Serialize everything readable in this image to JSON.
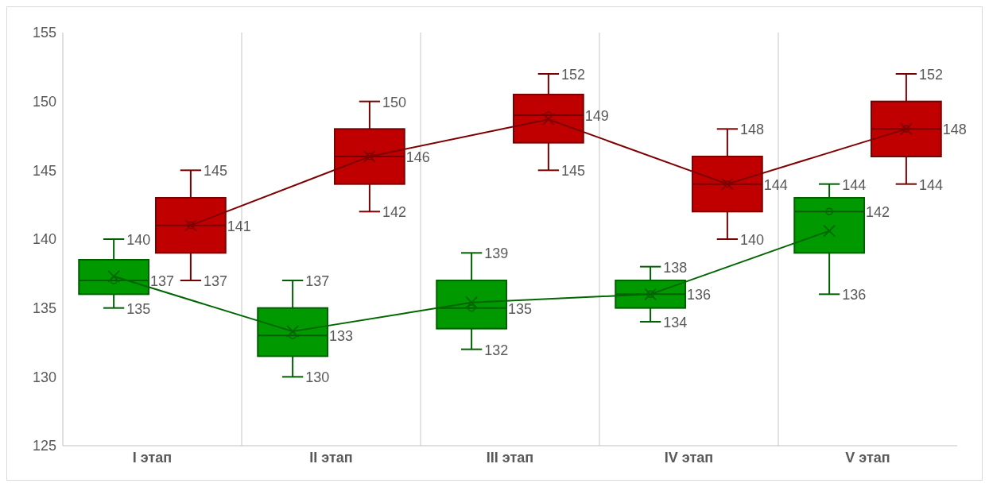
{
  "chart_data": {
    "type": "box",
    "categories": [
      "I этап",
      "II этап",
      "III этап",
      "IV этап",
      "V этап"
    ],
    "ylim": [
      125,
      155
    ],
    "yticks": [
      125,
      130,
      135,
      140,
      145,
      150,
      155
    ],
    "grid": "x",
    "series": [
      {
        "color": "#009900",
        "boxes": [
          {
            "low": 135,
            "q1": 136,
            "median": 137,
            "q3": 138.5,
            "high": 140
          },
          {
            "low": 130,
            "q1": 131.5,
            "median": 133,
            "q3": 135,
            "high": 137
          },
          {
            "low": 132,
            "q1": 133.5,
            "median": 135,
            "q3": 137,
            "high": 139
          },
          {
            "low": 134,
            "q1": 135,
            "median": 136,
            "q3": 137,
            "high": 138
          },
          {
            "low": 136,
            "q1": 139,
            "median": 142,
            "q3": 143,
            "high": 144
          }
        ]
      },
      {
        "color": "#c00000",
        "boxes": [
          {
            "low": 137,
            "q1": 139,
            "median": 141,
            "q3": 143,
            "high": 145
          },
          {
            "low": 142,
            "q1": 144,
            "median": 146,
            "q3": 148,
            "high": 150
          },
          {
            "low": 145,
            "q1": 147,
            "median": 149,
            "q3": 150.5,
            "high": 152
          },
          {
            "low": 140,
            "q1": 142,
            "median": 144,
            "q3": 146,
            "high": 148
          },
          {
            "low": 144,
            "q1": 146,
            "median": 148,
            "q3": 150,
            "high": 152
          }
        ]
      },
      {
        "type": "line",
        "color": "#006600",
        "marker": "cross",
        "values": [
          137.3,
          133.3,
          135.4,
          136,
          140.6
        ]
      },
      {
        "type": "line",
        "color": "#7f0000",
        "marker": "cross",
        "values": [
          141,
          146,
          148.7,
          144,
          148
        ]
      },
      {
        "type": "scatter",
        "color": "#006600",
        "marker": "circle",
        "values": [
          137,
          133,
          135,
          136,
          142
        ]
      },
      {
        "type": "scatter",
        "color": "#7f0000",
        "marker": "circle",
        "values": [
          141,
          146,
          149,
          144,
          148
        ]
      }
    ],
    "annotations": [
      "140",
      "137",
      "135",
      "145",
      "141",
      "137",
      "137",
      "133",
      "130",
      "150",
      "146",
      "142",
      "139",
      "135",
      "132",
      "152",
      "149",
      "145",
      "138",
      "136",
      "134",
      "148",
      "144",
      "140",
      "144",
      "142",
      "136",
      "152",
      "148",
      "144"
    ]
  }
}
